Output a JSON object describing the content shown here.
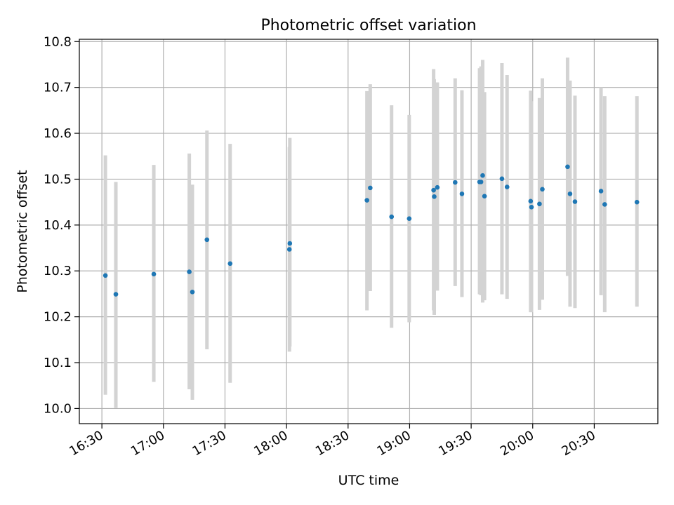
{
  "chart_data": {
    "type": "scatter",
    "title": "Photometric offset variation",
    "xlabel": "UTC time",
    "ylabel": "Photometric offset",
    "x_unit": "minutes since 16:00 UTC",
    "xlim": [
      19,
      301
    ],
    "ylim": [
      9.967,
      10.805
    ],
    "grid": true,
    "legend": "none",
    "xticks": [
      {
        "value": 30,
        "label": "16:30"
      },
      {
        "value": 60,
        "label": "17:00"
      },
      {
        "value": 90,
        "label": "17:30"
      },
      {
        "value": 120,
        "label": "18:00"
      },
      {
        "value": 150,
        "label": "18:30"
      },
      {
        "value": 180,
        "label": "19:00"
      },
      {
        "value": 210,
        "label": "19:30"
      },
      {
        "value": 240,
        "label": "20:00"
      },
      {
        "value": 270,
        "label": "20:30"
      }
    ],
    "yticks": [
      {
        "value": 10.0,
        "label": "10.0"
      },
      {
        "value": 10.1,
        "label": "10.1"
      },
      {
        "value": 10.2,
        "label": "10.2"
      },
      {
        "value": 10.3,
        "label": "10.3"
      },
      {
        "value": 10.4,
        "label": "10.4"
      },
      {
        "value": 10.5,
        "label": "10.5"
      },
      {
        "value": 10.6,
        "label": "10.6"
      },
      {
        "value": 10.7,
        "label": "10.7"
      },
      {
        "value": 10.8,
        "label": "10.8"
      }
    ],
    "colors": {
      "point": "#1f77b4",
      "errorbar": "#d3d3d3",
      "grid": "#b0b0b0"
    },
    "series": [
      {
        "name": "offset",
        "points": [
          {
            "x": 31.7,
            "y": 10.29,
            "ylo": 10.03,
            "yhi": 10.552
          },
          {
            "x": 36.8,
            "y": 10.249,
            "ylo": 10.001,
            "yhi": 10.494
          },
          {
            "x": 55.3,
            "y": 10.293,
            "ylo": 10.058,
            "yhi": 10.531
          },
          {
            "x": 72.6,
            "y": 10.298,
            "ylo": 10.042,
            "yhi": 10.556
          },
          {
            "x": 74.1,
            "y": 10.254,
            "ylo": 10.019,
            "yhi": 10.488
          },
          {
            "x": 81.2,
            "y": 10.368,
            "ylo": 10.129,
            "yhi": 10.606
          },
          {
            "x": 92.5,
            "y": 10.316,
            "ylo": 10.056,
            "yhi": 10.577
          },
          {
            "x": 121.4,
            "y": 10.347,
            "ylo": 10.124,
            "yhi": 10.57
          },
          {
            "x": 121.6,
            "y": 10.36,
            "ylo": 10.135,
            "yhi": 10.59
          },
          {
            "x": 159.2,
            "y": 10.454,
            "ylo": 10.214,
            "yhi": 10.692
          },
          {
            "x": 160.8,
            "y": 10.481,
            "ylo": 10.256,
            "yhi": 10.707
          },
          {
            "x": 171.2,
            "y": 10.418,
            "ylo": 10.176,
            "yhi": 10.661
          },
          {
            "x": 179.8,
            "y": 10.414,
            "ylo": 10.188,
            "yhi": 10.64
          },
          {
            "x": 191.7,
            "y": 10.476,
            "ylo": 10.214,
            "yhi": 10.74
          },
          {
            "x": 192.0,
            "y": 10.462,
            "ylo": 10.204,
            "yhi": 10.718
          },
          {
            "x": 193.5,
            "y": 10.482,
            "ylo": 10.257,
            "yhi": 10.711
          },
          {
            "x": 202.2,
            "y": 10.493,
            "ylo": 10.267,
            "yhi": 10.72
          },
          {
            "x": 205.5,
            "y": 10.468,
            "ylo": 10.243,
            "yhi": 10.694
          },
          {
            "x": 214.1,
            "y": 10.494,
            "ylo": 10.249,
            "yhi": 10.742
          },
          {
            "x": 214.8,
            "y": 10.494,
            "ylo": 10.247,
            "yhi": 10.746
          },
          {
            "x": 215.6,
            "y": 10.508,
            "ylo": 10.231,
            "yhi": 10.76
          },
          {
            "x": 216.5,
            "y": 10.463,
            "ylo": 10.236,
            "yhi": 10.69
          },
          {
            "x": 225.0,
            "y": 10.501,
            "ylo": 10.249,
            "yhi": 10.753
          },
          {
            "x": 227.5,
            "y": 10.483,
            "ylo": 10.239,
            "yhi": 10.727
          },
          {
            "x": 239.0,
            "y": 10.452,
            "ylo": 10.21,
            "yhi": 10.693
          },
          {
            "x": 239.4,
            "y": 10.439,
            "ylo": 10.21,
            "yhi": 10.67
          },
          {
            "x": 243.3,
            "y": 10.446,
            "ylo": 10.215,
            "yhi": 10.677
          },
          {
            "x": 244.7,
            "y": 10.478,
            "ylo": 10.237,
            "yhi": 10.72
          },
          {
            "x": 257.0,
            "y": 10.527,
            "ylo": 10.289,
            "yhi": 10.765
          },
          {
            "x": 258.2,
            "y": 10.468,
            "ylo": 10.222,
            "yhi": 10.715
          },
          {
            "x": 260.6,
            "y": 10.451,
            "ylo": 10.219,
            "yhi": 10.682
          },
          {
            "x": 273.3,
            "y": 10.474,
            "ylo": 10.247,
            "yhi": 10.7
          },
          {
            "x": 275.1,
            "y": 10.445,
            "ylo": 10.21,
            "yhi": 10.681
          },
          {
            "x": 290.8,
            "y": 10.45,
            "ylo": 10.222,
            "yhi": 10.681
          }
        ]
      }
    ]
  }
}
